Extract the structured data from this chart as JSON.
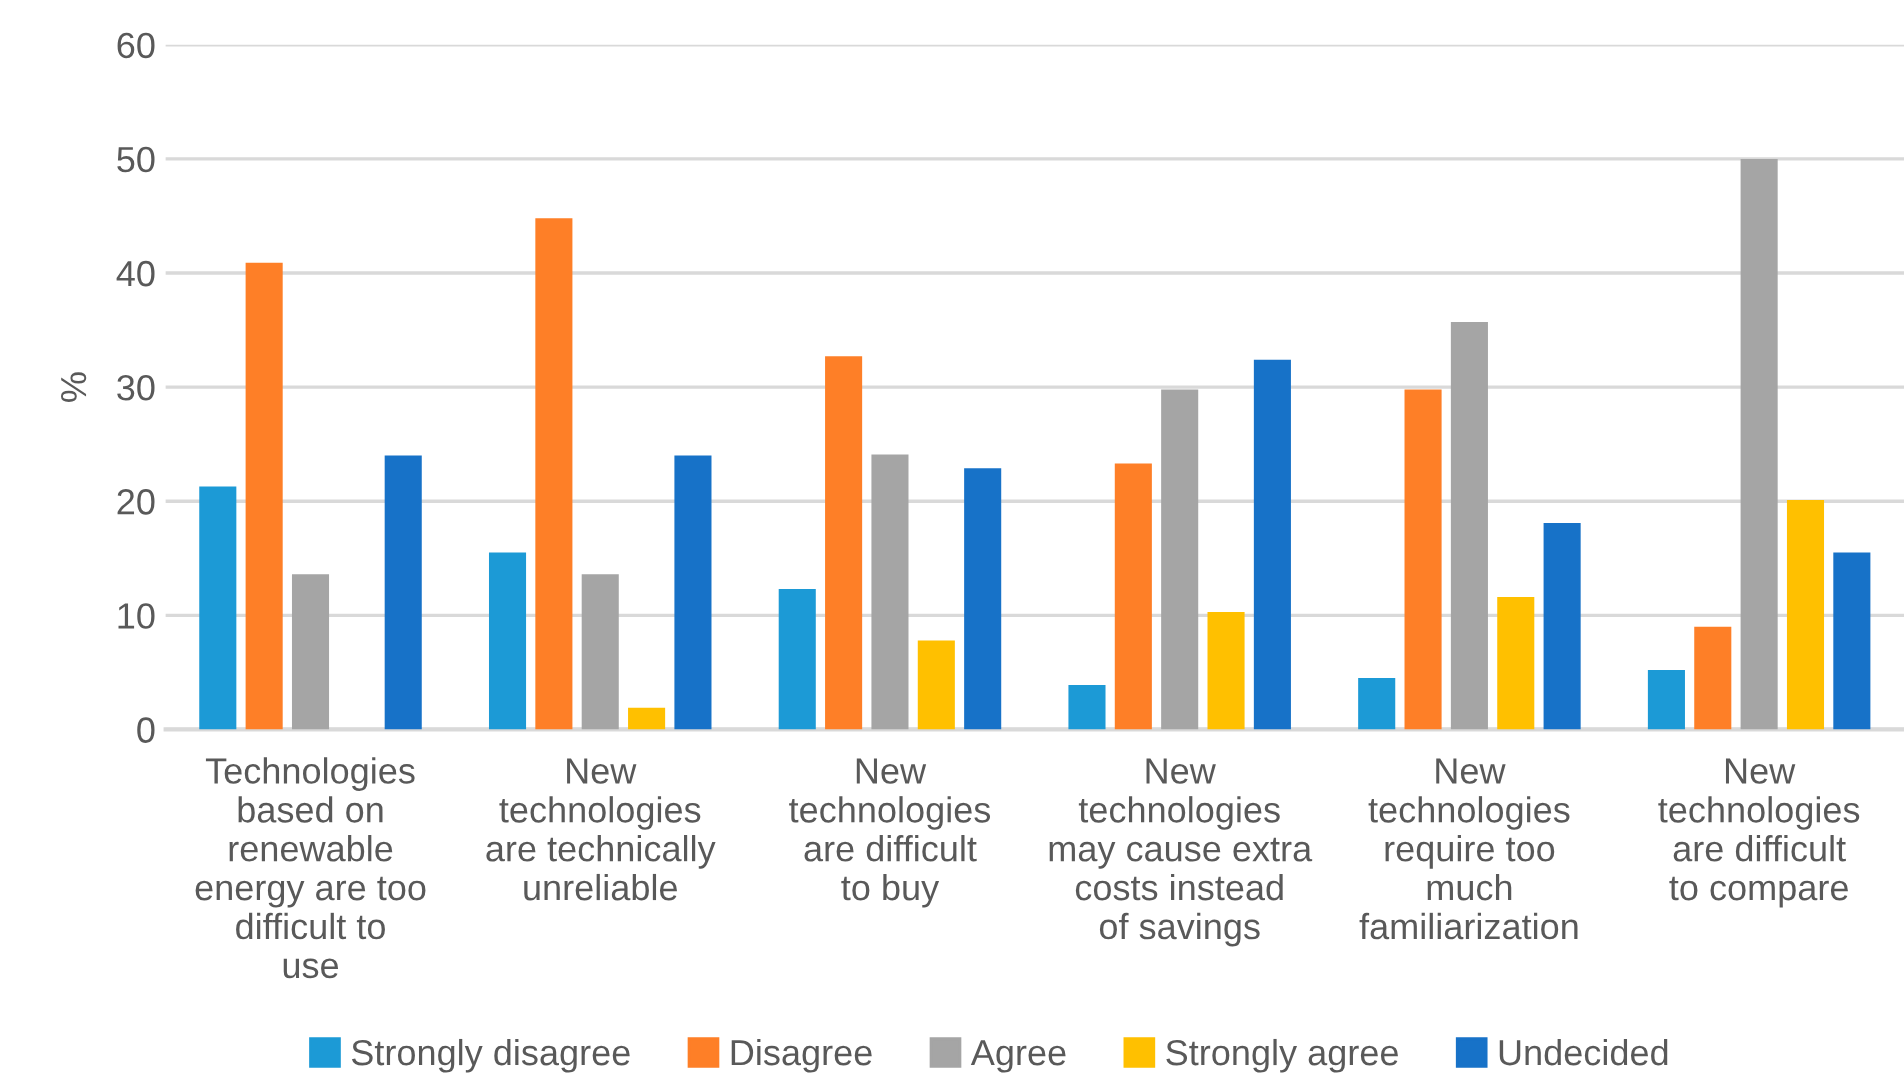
{
  "chart_data": {
    "type": "bar",
    "ylabel": "%",
    "categories": [
      "Technologies based on renewable energy are too difficult to use",
      "New technologies are technically unreliable",
      "New technologies are difficult to buy",
      "New technologies may cause extra costs instead of savings",
      "New technologies require too much familiarization",
      "New technologies are difficult to compare"
    ],
    "series": [
      {
        "name": "Strongly disagree",
        "color": "#1c9ad6",
        "values": [
          21.3,
          15.5,
          12.3,
          3.9,
          4.5,
          5.2
        ]
      },
      {
        "name": "Disagree",
        "color": "#fe7f27",
        "values": [
          40.9,
          44.8,
          32.7,
          23.3,
          29.8,
          9.0
        ]
      },
      {
        "name": "Agree",
        "color": "#a5a5a5",
        "values": [
          13.6,
          13.6,
          24.1,
          29.8,
          35.7,
          50.0
        ]
      },
      {
        "name": "Strongly agree",
        "color": "#ffc000",
        "values": [
          null,
          1.9,
          7.8,
          10.3,
          11.6,
          20.1
        ]
      },
      {
        "name": "Undecided",
        "color": "#1772c8",
        "values": [
          24.0,
          24.0,
          22.9,
          32.4,
          18.1,
          15.5
        ]
      }
    ],
    "ylim": [
      0,
      60
    ],
    "yticks": [
      0,
      10,
      20,
      30,
      40,
      50,
      60
    ],
    "grid": "y",
    "legend": "bottom"
  }
}
